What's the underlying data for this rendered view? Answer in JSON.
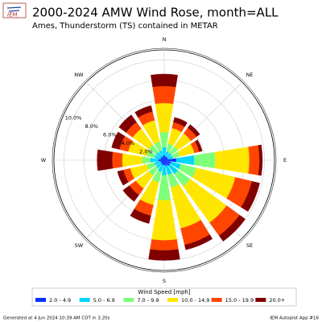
{
  "logo_text": "IEM",
  "chart_data": {
    "type": "wind_rose",
    "title": "2000-2024 AMW Wind Rose, month=ALL",
    "subtitle": "Ames, Thunderstorm (TS) contained in METAR",
    "categories": [
      "N",
      null,
      "NE",
      null,
      "E",
      null,
      "SE",
      null,
      "S",
      null,
      "SW",
      null,
      "W",
      null,
      "NW",
      null
    ],
    "rlim": [
      0,
      11
    ],
    "rticks": [
      {
        "value": 2,
        "label": "2.0%"
      },
      {
        "value": 4,
        "label": "4.0%"
      },
      {
        "value": 6,
        "label": "6.0%"
      },
      {
        "value": 8,
        "label": "8.0%"
      },
      {
        "value": 10,
        "label": "10.0%"
      }
    ],
    "grid": true,
    "legend_title": "Wind Speed [mph]",
    "legend_position": "bottom",
    "series": [
      {
        "name": "2.0 - 4.9",
        "color": "#0a32ff",
        "values": [
          0.5,
          0.4,
          0.4,
          0.4,
          1.2,
          0.7,
          0.7,
          0.6,
          0.5,
          0.5,
          0.4,
          0.4,
          0.6,
          0.4,
          0.4,
          0.4
        ]
      },
      {
        "name": "5.0 - 6.9",
        "color": "#00d5ff",
        "values": [
          0.8,
          0.5,
          0.5,
          0.5,
          1.8,
          1.0,
          1.0,
          0.9,
          1.0,
          0.7,
          0.6,
          0.6,
          0.8,
          0.6,
          0.6,
          0.6
        ]
      },
      {
        "name": "7.0 - 9.9",
        "color": "#7dff7a",
        "values": [
          1.5,
          0.8,
          0.8,
          0.7,
          2.1,
          1.6,
          1.5,
          1.3,
          2.5,
          1.1,
          0.9,
          0.8,
          0.8,
          0.8,
          0.9,
          0.9
        ]
      },
      {
        "name": "10.0 - 14.9",
        "color": "#ffe600",
        "values": [
          2.9,
          1.6,
          1.6,
          1.5,
          3.4,
          4.0,
          4.5,
          4.2,
          4.0,
          2.3,
          1.6,
          1.7,
          2.0,
          1.9,
          2.0,
          2.2
        ]
      },
      {
        "name": "15.0 - 19.9",
        "color": "#ff4500",
        "values": [
          1.7,
          0.6,
          0.7,
          0.5,
          1.0,
          1.7,
          1.6,
          1.7,
          1.0,
          1.1,
          0.8,
          0.7,
          1.0,
          0.9,
          0.8,
          0.9
        ]
      },
      {
        "name": "20.0+",
        "color": "#800000",
        "values": [
          1.2,
          0.5,
          0.4,
          0.3,
          0.3,
          0.8,
          0.7,
          0.5,
          1.0,
          0.8,
          0.8,
          0.6,
          1.5,
          0.8,
          0.9,
          0.6
        ]
      }
    ],
    "footer_left": "Generated at 4 Jun 2024 10:39 AM CDT in 3.20s",
    "footer_right": "IEM Autoplot App #16"
  }
}
